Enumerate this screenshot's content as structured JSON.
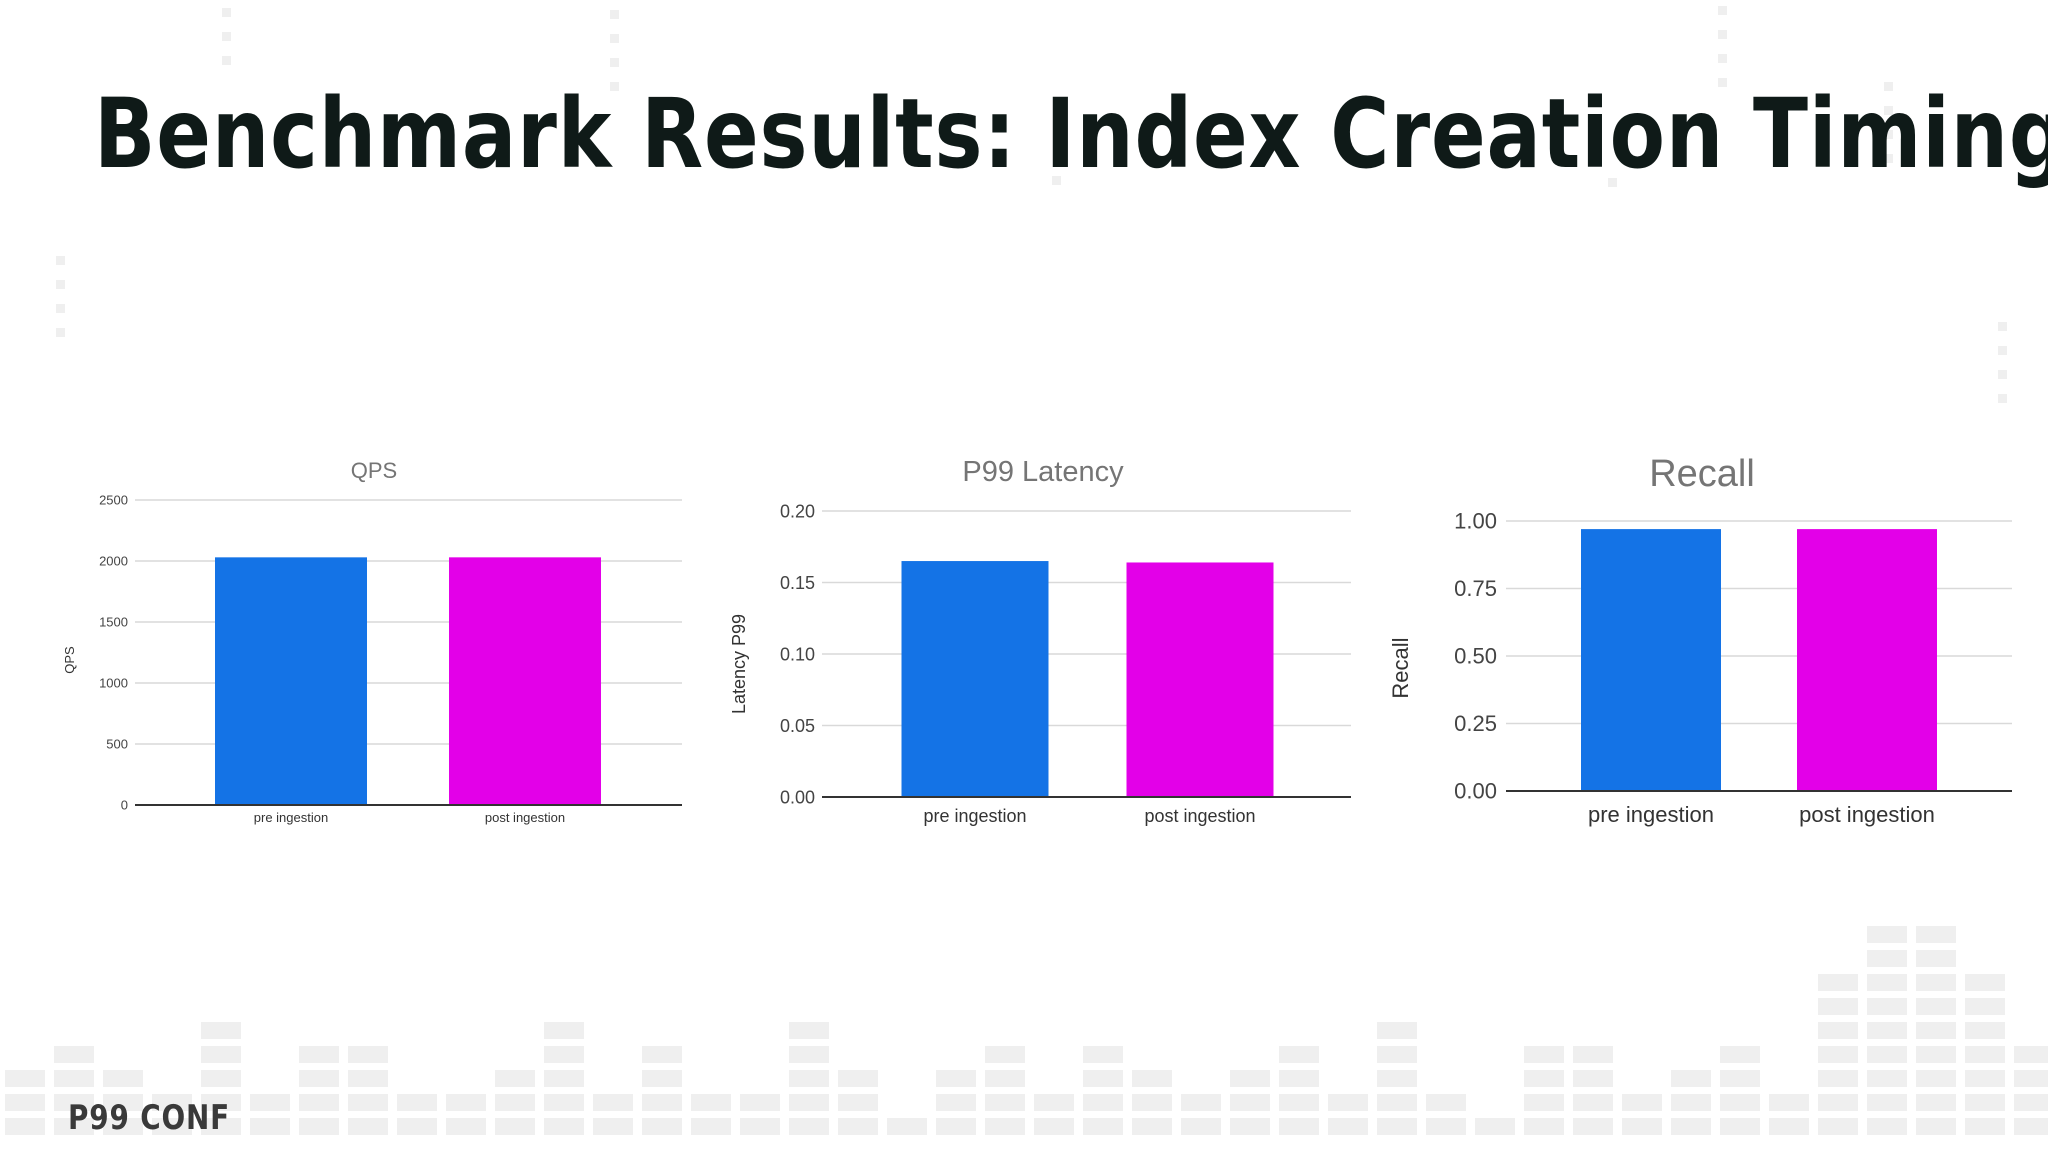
{
  "slide": {
    "title": "Benchmark Results: Index Creation Timing",
    "footer_logo": "P99 CONF"
  },
  "colors": {
    "pre": "#1473e6",
    "post": "#e300e8",
    "grid": "#d9d9d9",
    "axis": "#333333",
    "deco": "#efefef"
  },
  "chart_data": [
    {
      "type": "bar",
      "title": "QPS",
      "ylabel": "QPS",
      "xlabel": "",
      "categories": [
        "pre ingestion",
        "post ingestion"
      ],
      "values": [
        2030,
        2030
      ],
      "ylim": [
        0,
        2500
      ],
      "yticks": [
        "0",
        "500",
        "1000",
        "1500",
        "2000",
        "2500"
      ],
      "grid": true
    },
    {
      "type": "bar",
      "title": "P99 Latency",
      "ylabel": "Latency P99",
      "xlabel": "",
      "categories": [
        "pre ingestion",
        "post ingestion"
      ],
      "values": [
        0.165,
        0.164
      ],
      "ylim": [
        0,
        0.2
      ],
      "yticks": [
        "0.00",
        "0.05",
        "0.10",
        "0.15",
        "0.20"
      ],
      "grid": true
    },
    {
      "type": "bar",
      "title": "Recall",
      "ylabel": "Recall",
      "xlabel": "",
      "categories": [
        "pre ingestion",
        "post ingestion"
      ],
      "values": [
        0.97,
        0.97
      ],
      "ylim": [
        0,
        1
      ],
      "yticks": [
        "0.00",
        "0.25",
        "0.50",
        "0.75",
        "1.00"
      ],
      "grid": true
    }
  ]
}
